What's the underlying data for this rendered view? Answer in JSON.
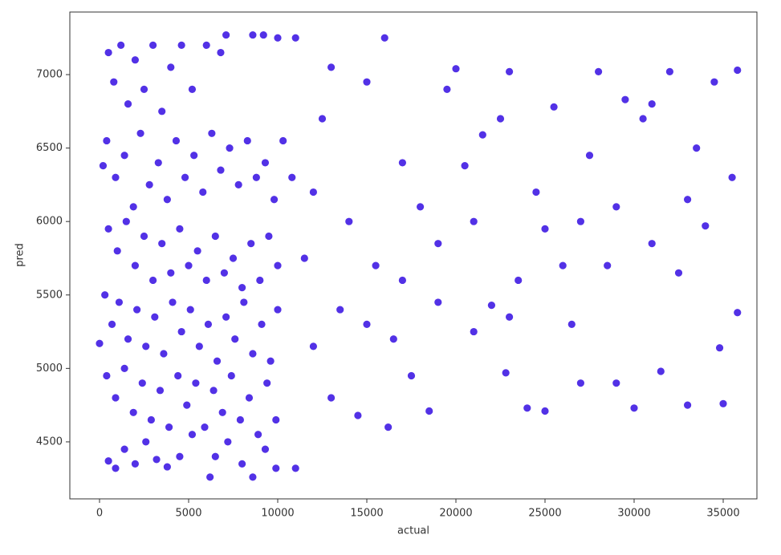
{
  "chart_data": {
    "type": "scatter",
    "x_label": "actual",
    "y_label": "pred",
    "color": "#5231e6",
    "xlim": [
      -1667,
      36892
    ],
    "ylim": [
      4112,
      7426
    ],
    "xticks": [
      0,
      5000,
      10000,
      15000,
      20000,
      25000,
      30000,
      35000
    ],
    "yticks": [
      4500,
      5000,
      5500,
      6000,
      6500,
      7000
    ],
    "x": [
      500,
      800,
      1200,
      1600,
      2000,
      2500,
      3000,
      3500,
      4000,
      4600,
      5200,
      6000,
      6800,
      7100,
      8600,
      9200,
      10000,
      11000,
      400,
      900,
      1400,
      1900,
      2300,
      2800,
      3300,
      3800,
      4300,
      4800,
      5300,
      5800,
      6300,
      6800,
      7300,
      7800,
      8300,
      8800,
      9300,
      9800,
      10300,
      10800,
      200,
      500,
      1000,
      1500,
      2000,
      2500,
      3000,
      3500,
      4000,
      4500,
      5000,
      5500,
      6000,
      6500,
      7000,
      7500,
      8000,
      8500,
      9000,
      9500,
      10000,
      300,
      700,
      1100,
      1600,
      2100,
      2600,
      3100,
      3600,
      4100,
      4600,
      5100,
      5600,
      6100,
      6600,
      7100,
      7600,
      8100,
      8600,
      9100,
      9600,
      10000,
      0,
      400,
      900,
      1400,
      1900,
      2400,
      2900,
      3400,
      3900,
      4400,
      4900,
      5400,
      5900,
      6400,
      6900,
      7400,
      7900,
      8400,
      8900,
      9400,
      9900,
      500,
      900,
      1400,
      2000,
      2600,
      3200,
      3800,
      4500,
      5200,
      6200,
      6500,
      7200,
      8000,
      8600,
      9300,
      9900,
      11000,
      11500,
      12000,
      12500,
      13000,
      13500,
      14000,
      14500,
      15000,
      15500,
      16000,
      16200,
      16500,
      17000,
      17500,
      18000,
      18500,
      19000,
      19500,
      20000,
      20500,
      21000,
      21500,
      22000,
      22500,
      22800,
      23000,
      23500,
      24000,
      24500,
      25000,
      25500,
      26000,
      26500,
      27000,
      27500,
      28000,
      28500,
      29000,
      29500,
      30000,
      30500,
      31000,
      31500,
      32000,
      32500,
      33000,
      33500,
      34000,
      34500,
      35000,
      35500,
      35800,
      35800,
      34800,
      33000,
      31000,
      29000,
      27000,
      25000,
      23000,
      21000,
      19000,
      17000,
      15000,
      13000,
      12000
    ],
    "values": [
      7150,
      6950,
      7200,
      6800,
      7100,
      6900,
      7200,
      6750,
      7050,
      7200,
      6900,
      7200,
      7150,
      7270,
      7270,
      7270,
      7250,
      7250,
      6550,
      6300,
      6450,
      6100,
      6600,
      6250,
      6400,
      6150,
      6550,
      6300,
      6450,
      6200,
      6600,
      6350,
      6500,
      6250,
      6550,
      6300,
      6400,
      6150,
      6550,
      6300,
      6380,
      5950,
      5800,
      6000,
      5700,
      5900,
      5600,
      5850,
      5650,
      5950,
      5700,
      5800,
      5600,
      5900,
      5650,
      5750,
      5550,
      5850,
      5600,
      5900,
      5700,
      5500,
      5300,
      5450,
      5200,
      5400,
      5150,
      5350,
      5100,
      5450,
      5250,
      5400,
      5150,
      5300,
      5050,
      5350,
      5200,
      5450,
      5100,
      5300,
      5050,
      5400,
      5170,
      4950,
      4800,
      5000,
      4700,
      4900,
      4650,
      4850,
      4600,
      4950,
      4750,
      4900,
      4600,
      4850,
      4700,
      4950,
      4650,
      4800,
      4550,
      4900,
      4650,
      4370,
      4320,
      4450,
      4350,
      4500,
      4380,
      4330,
      4400,
      4550,
      4260,
      4400,
      4500,
      4350,
      4260,
      4450,
      4320,
      4320,
      5750,
      5150,
      6700,
      7050,
      5400,
      6000,
      4680,
      6950,
      5700,
      7250,
      4600,
      5200,
      6400,
      4950,
      6100,
      4710,
      5450,
      6900,
      7040,
      6380,
      5250,
      6590,
      5430,
      6700,
      4970,
      7020,
      5600,
      4730,
      6200,
      4710,
      6780,
      5700,
      5300,
      4900,
      6450,
      7020,
      5700,
      4900,
      6830,
      4730,
      6700,
      5850,
      4980,
      7020,
      5650,
      4750,
      6500,
      5970,
      6950,
      4760,
      6300,
      7030,
      5380,
      5140,
      6150,
      6800,
      6100,
      6000,
      5950,
      5350,
      6000,
      5850,
      5600,
      5300,
      4800,
      6200
    ]
  }
}
